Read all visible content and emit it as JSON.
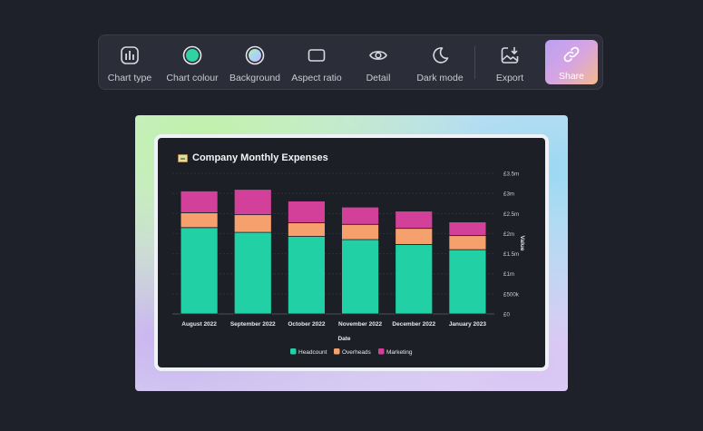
{
  "toolbar": {
    "items": [
      {
        "label": "Chart type",
        "icon": "bar-chart-icon"
      },
      {
        "label": "Chart colour",
        "icon": "color-swatch-icon",
        "color": "#2fd3a4"
      },
      {
        "label": "Background",
        "icon": "background-swatch-icon"
      },
      {
        "label": "Aspect ratio",
        "icon": "aspect-ratio-icon"
      },
      {
        "label": "Detail",
        "icon": "eye-icon"
      },
      {
        "label": "Dark mode",
        "icon": "moon-icon"
      },
      {
        "label": "Export",
        "icon": "export-image-icon"
      }
    ],
    "share_label": "Share"
  },
  "chart_data": {
    "type": "bar",
    "stacked": true,
    "title": "Company Monthly Expenses",
    "xlabel": "Date",
    "ylabel": "Value",
    "ylim": [
      0,
      3500000
    ],
    "y_ticks": [
      0,
      500000,
      1000000,
      1500000,
      2000000,
      2500000,
      3000000,
      3500000
    ],
    "y_tick_labels": [
      "£0",
      "£500k",
      "£1m",
      "£1.5m",
      "£2m",
      "£2.5m",
      "£3m",
      "£3.5m"
    ],
    "y_axis_side": "right",
    "grid": true,
    "legend_position": "bottom",
    "categories": [
      "August 2022",
      "September 2022",
      "October 2022",
      "November 2022",
      "December 2022",
      "January 2023"
    ],
    "series": [
      {
        "name": "Headcount",
        "color": "#22d0a5",
        "values": [
          2150000,
          2030000,
          1930000,
          1850000,
          1730000,
          1600000
        ]
      },
      {
        "name": "Overheads",
        "color": "#f6a06e",
        "values": [
          370000,
          440000,
          340000,
          380000,
          400000,
          350000
        ]
      },
      {
        "name": "Marketing",
        "color": "#d2409a",
        "values": [
          540000,
          630000,
          540000,
          430000,
          430000,
          340000
        ]
      }
    ]
  }
}
